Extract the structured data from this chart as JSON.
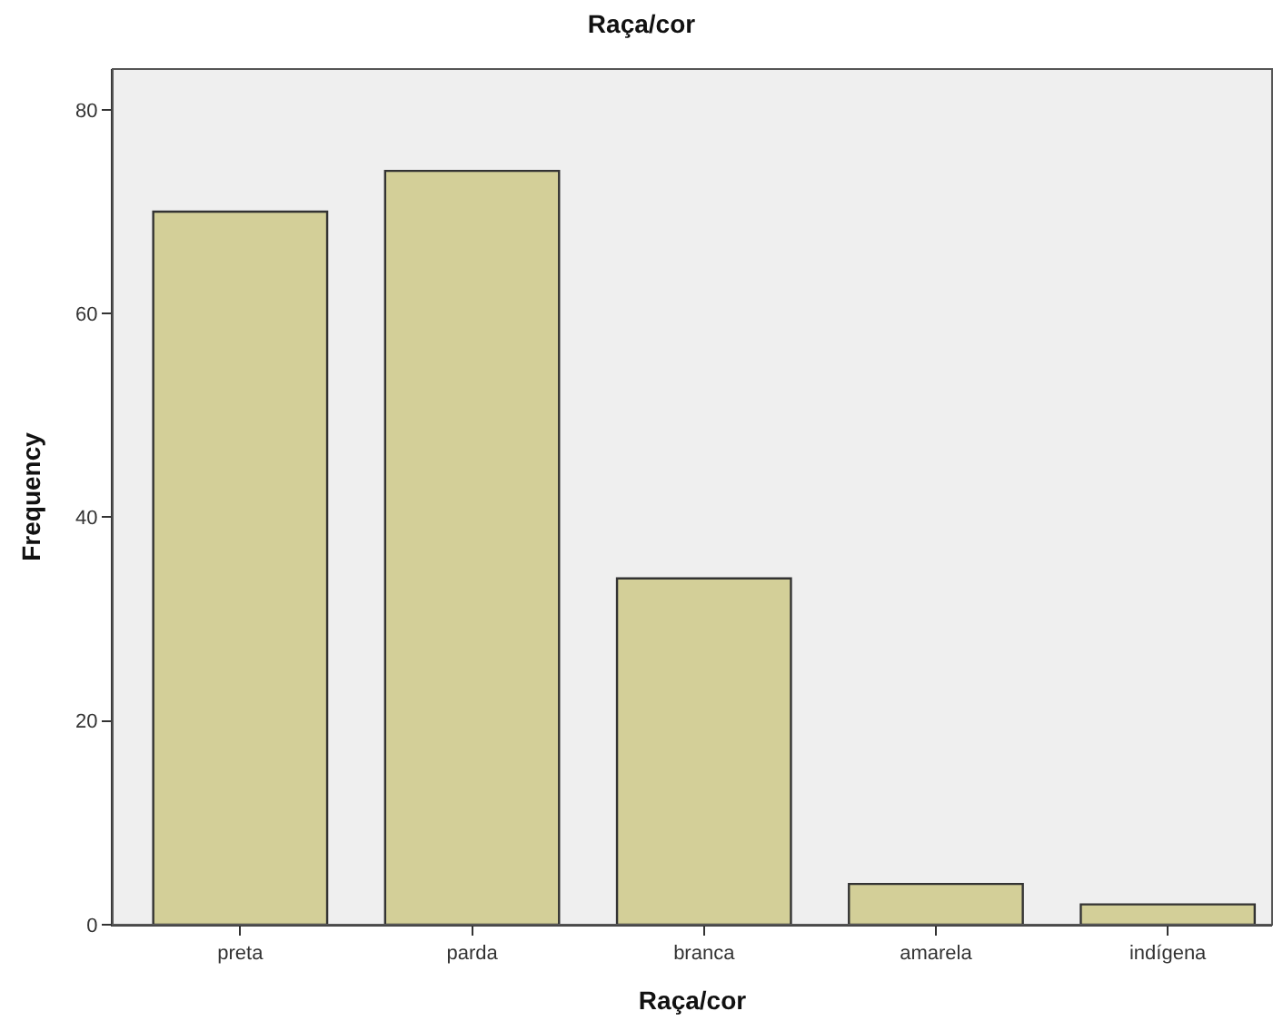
{
  "chart_data": {
    "type": "bar",
    "title": "Raça/cor",
    "xlabel": "Raça/cor",
    "ylabel": "Frequency",
    "categories": [
      "preta",
      "parda",
      "branca",
      "amarela",
      "indígena"
    ],
    "values": [
      70,
      74,
      34,
      4,
      2
    ],
    "color": "#d3cf98",
    "ylim": [
      0,
      84
    ],
    "yticks": [
      0,
      20,
      40,
      60,
      80
    ],
    "grid": false
  }
}
